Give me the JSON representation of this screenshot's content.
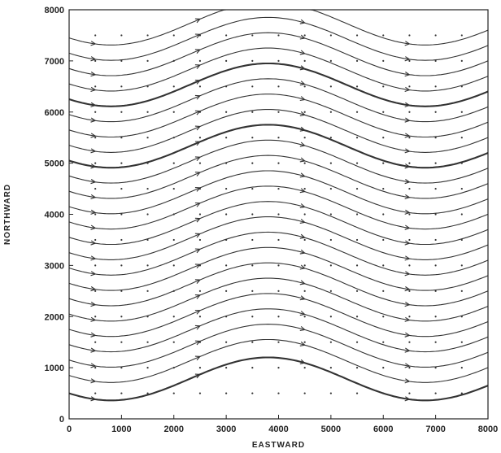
{
  "chart_data": {
    "type": "streamline",
    "title": "",
    "xlabel": "EASTWARD",
    "ylabel": "NORTHWARD",
    "xlim": [
      0,
      8000
    ],
    "ylim": [
      0,
      8000
    ],
    "x_ticks": [
      0,
      1000,
      2000,
      3000,
      4000,
      5000,
      6000,
      7000,
      8000
    ],
    "y_ticks": [
      0,
      1000,
      2000,
      3000,
      4000,
      5000,
      6000,
      7000,
      8000
    ],
    "x_tick_labels": [
      "0",
      "1000",
      "2000",
      "3000",
      "4000",
      "5000",
      "6000",
      "7000",
      "8000"
    ],
    "y_tick_labels": [
      "0",
      "1000",
      "2000",
      "3000",
      "4000",
      "5000",
      "6000",
      "7000",
      "8000"
    ],
    "grid": false,
    "grid_points_spacing": 500,
    "streamlines": {
      "x_start": 0,
      "x_end": 8000,
      "wavelength": 6000,
      "crest_x": 3800,
      "amplitude": 420,
      "y_mid_at_x0": [
        500,
        850,
        1150,
        1450,
        1750,
        2050,
        2350,
        2650,
        2950,
        3250,
        3550,
        3850,
        4150,
        4450,
        4750,
        5050,
        5350,
        5650,
        5950,
        6250,
        6550,
        6850,
        7150,
        7450
      ],
      "heavy_indices": [
        0,
        15,
        19
      ],
      "arrow_x": [
        500,
        2500,
        4500,
        6500
      ]
    }
  }
}
